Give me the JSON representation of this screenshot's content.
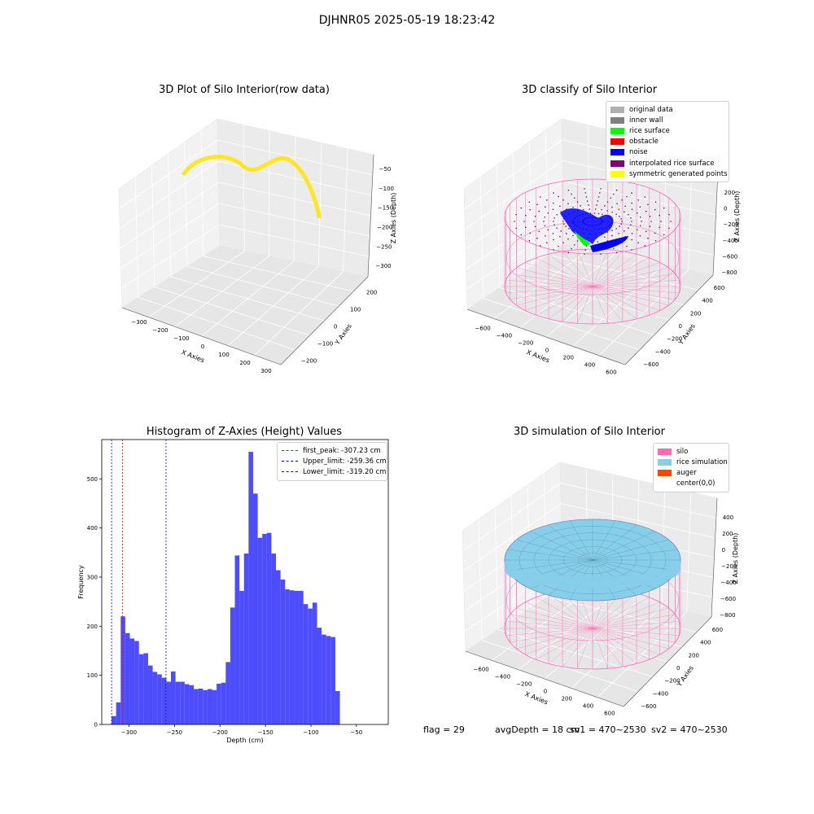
{
  "figure": {
    "suptitle": "DJHNR05 2025-05-19 18:23:42",
    "footer": {
      "flag": "flag = 29",
      "avg_depth": "avgDepth = 18 cm",
      "sv1": "sv1 = 470~2530",
      "sv2": "sv2 = 470~2530"
    }
  },
  "colors": {
    "hist_bar": "#4d4dff",
    "first_peak_line": "#ff0000",
    "limit_line": "#0000ff",
    "silo_wire": "#ff69b4",
    "rice_sim": "#87ceeb",
    "noise": "#0000ff",
    "rice_surface": "#00ff00",
    "interp": "#800080"
  },
  "chart_data": [
    {
      "type": "scatter3d",
      "title": "3D Plot of Silo Interior(row data)",
      "xlabel": "X Axies",
      "ylabel": "Y Axies",
      "zlabel": "Z Axies (Depth)",
      "x_ticks": [
        "−300",
        "−200",
        "−100",
        "0",
        "100",
        "200",
        "300"
      ],
      "y_ticks": [
        "−200",
        "−100",
        "0",
        "100",
        "200"
      ],
      "z_ticks": [
        "−50",
        "−100",
        "−150",
        "−200",
        "−250",
        "−300"
      ],
      "colormap": "viridis"
    },
    {
      "type": "scatter3d",
      "title": "3D classify of Silo Interior",
      "xlabel": "X Axies",
      "ylabel": "Y Axies",
      "zlabel": "Z Axies (Depth)",
      "x_ticks": [
        "−600",
        "−400",
        "−200",
        "0",
        "200",
        "400",
        "600"
      ],
      "y_ticks": [
        "−600",
        "−400",
        "−200",
        "0",
        "200",
        "400",
        "600"
      ],
      "z_ticks": [
        "200",
        "0",
        "−200",
        "−400",
        "−600",
        "−800"
      ],
      "legend": [
        {
          "label": "original data",
          "color": "#b0b0b0"
        },
        {
          "label": "inner wall",
          "color": "#808080"
        },
        {
          "label": "rice surface",
          "color": "#00ff00"
        },
        {
          "label": "obstacle",
          "color": "#ff0000"
        },
        {
          "label": "noise",
          "color": "#0000ff"
        },
        {
          "label": "interpolated rice surface",
          "color": "#800080"
        },
        {
          "label": "symmetric generated points",
          "color": "#ffff00"
        }
      ]
    },
    {
      "type": "bar",
      "title": "Histogram of Z-Axies (Height) Values",
      "xlabel": "Depth (cm)",
      "ylabel": "Frequency",
      "xlim": [
        -330,
        -15
      ],
      "ylim": [
        0,
        580
      ],
      "x_ticks": [
        -300,
        -250,
        -200,
        -150,
        -100,
        -50
      ],
      "x_tick_labels": [
        "−300",
        "−250",
        "−200",
        "−150",
        "−100",
        "−50"
      ],
      "y_ticks": [
        0,
        100,
        200,
        300,
        400,
        500
      ],
      "y_tick_labels": [
        "0",
        "100",
        "200",
        "300",
        "400",
        "500"
      ],
      "bin_start": -319.2,
      "bin_width": 5.02,
      "values": [
        17,
        45,
        220,
        186,
        175,
        170,
        143,
        145,
        120,
        107,
        102,
        95,
        87,
        108,
        87,
        87,
        82,
        80,
        72,
        73,
        70,
        72,
        70,
        83,
        85,
        127,
        238,
        344,
        272,
        348,
        555,
        470,
        380,
        388,
        390,
        348,
        314,
        295,
        275,
        273,
        272,
        272,
        245,
        236,
        248,
        197,
        183,
        180,
        178,
        68
      ],
      "vlines": [
        {
          "label": "first_peak: -307.23 cm",
          "x": -307.23,
          "color": "#ff0000"
        },
        {
          "label": "Upper_limit: -259.36 cm",
          "x": -259.36,
          "color": "#0000ff"
        },
        {
          "label": "Lower_limit: -319.20 cm",
          "x": -319.2,
          "color": "#0000ff"
        }
      ]
    },
    {
      "type": "surface3d",
      "title": "3D simulation of Silo Interior",
      "xlabel": "X Axies",
      "ylabel": "Y Axies",
      "zlabel": "Z Axies (Depth)",
      "x_ticks": [
        "−600",
        "−400",
        "−200",
        "0",
        "200",
        "400",
        "600"
      ],
      "y_ticks": [
        "−600",
        "−400",
        "−200",
        "0",
        "200",
        "400",
        "600"
      ],
      "z_ticks": [
        "400",
        "200",
        "0",
        "−200",
        "−400",
        "−600",
        "−800"
      ],
      "legend": [
        {
          "label": "silo",
          "color": "#ff69b4"
        },
        {
          "label": "rice simulation",
          "color": "#87ceeb"
        },
        {
          "label": "auger",
          "color": "#ff4500"
        },
        {
          "label": "center(0,0)",
          "color": ""
        }
      ]
    }
  ]
}
